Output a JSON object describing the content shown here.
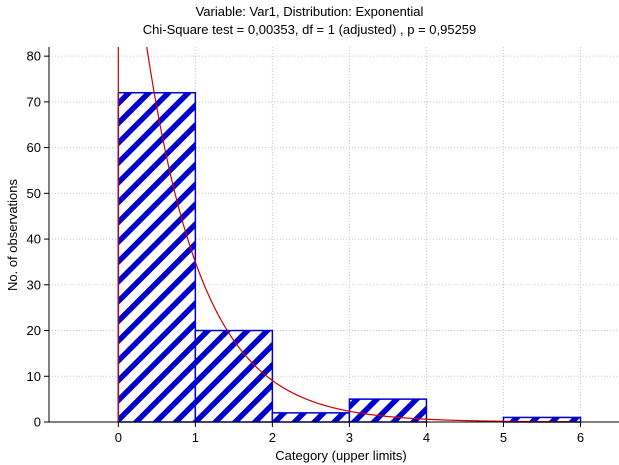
{
  "chart_data": {
    "type": "bar",
    "title": "Variable: Var1, Distribution: Exponential",
    "subtitle": "Chi-Square test = 0,00353, df = 1 (adjusted) , p = 0,95259",
    "xlabel": "Category (upper limits)",
    "ylabel": "No. of observations",
    "xlim": [
      -0.9,
      6.5
    ],
    "ylim": [
      0,
      82
    ],
    "x_ticks": [
      0,
      1,
      2,
      3,
      4,
      5,
      6
    ],
    "y_ticks": [
      0,
      10,
      20,
      30,
      40,
      50,
      60,
      70,
      80
    ],
    "grid": true,
    "bins": [
      {
        "from": 0,
        "to": 1,
        "value": 72
      },
      {
        "from": 1,
        "to": 2,
        "value": 20
      },
      {
        "from": 2,
        "to": 3,
        "value": 2
      },
      {
        "from": 3,
        "to": 4,
        "value": 5
      },
      {
        "from": 4,
        "to": 5,
        "value": 0
      },
      {
        "from": 5,
        "to": 6,
        "value": 1
      }
    ],
    "fitted_curve": {
      "type": "exponential",
      "lambda": 1.35,
      "scale": 100
    },
    "colors": {
      "bar_stroke": "#0000cc",
      "bar_hatch": "#0000cc",
      "curve": "#cc0000",
      "grid": "#c8c8c8",
      "axis": "#000000"
    }
  }
}
